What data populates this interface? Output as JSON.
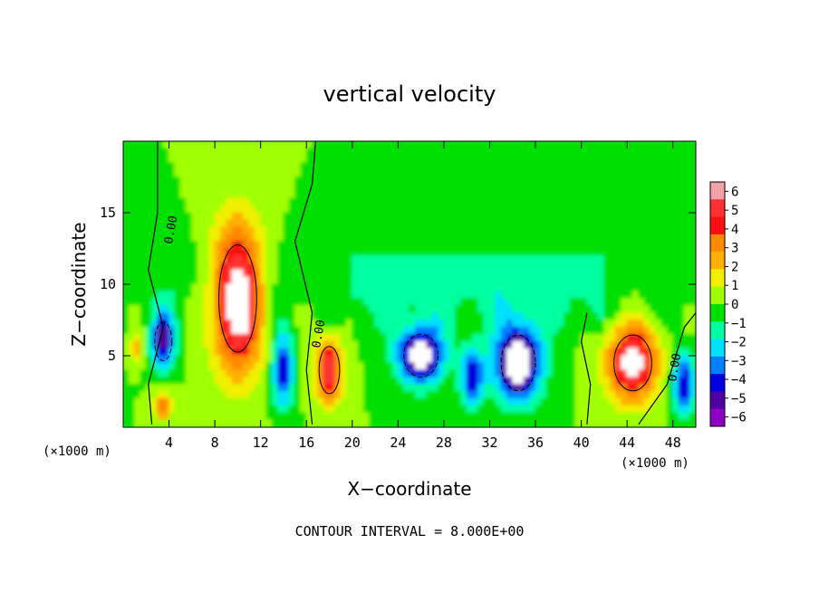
{
  "chart_data": {
    "type": "heatmap",
    "title": "vertical velocity",
    "xlabel": "X−coordinate",
    "ylabel": "Z−coordinate",
    "x_unit_left": "(×1000 m)",
    "x_unit_right": "(×1000 m)",
    "footer": "CONTOUR INTERVAL = 8.000E+00",
    "contour_label": "0.00",
    "xlim": [
      0,
      50
    ],
    "ylim": [
      0,
      20
    ],
    "x_ticks": [
      4,
      8,
      12,
      16,
      20,
      24,
      28,
      32,
      36,
      40,
      44,
      48
    ],
    "y_ticks": [
      5,
      10,
      15
    ],
    "colorbar": {
      "min": -6,
      "max": 6,
      "ticks": [
        "6",
        "5",
        "4",
        "3",
        "2",
        "1",
        "0",
        "−1",
        "−2",
        "−3",
        "−4",
        "−5",
        "−6"
      ],
      "colors": [
        "#f4a0a8",
        "#ff3030",
        "#ff1010",
        "#ff8a00",
        "#ffb000",
        "#f0f000",
        "#a0ff00",
        "#00e000",
        "#00ffa0",
        "#00e0ff",
        "#0080ff",
        "#0000e0",
        "#5000a0",
        "#9000c0"
      ]
    },
    "features": [
      {
        "kind": "updraft",
        "x": 10,
        "z": 9,
        "strength": 8,
        "sx": 2.2,
        "sz": 5
      },
      {
        "kind": "updraft",
        "x": 44.5,
        "z": 4.5,
        "strength": 7,
        "sx": 2.2,
        "sz": 2.6
      },
      {
        "kind": "updraft",
        "x": 18,
        "z": 4,
        "strength": 6,
        "sx": 1.2,
        "sz": 2.2
      },
      {
        "kind": "updraft",
        "x": 3.5,
        "z": 1.5,
        "strength": 4,
        "sx": 0.8,
        "sz": 1
      },
      {
        "kind": "updraft",
        "x": 1.2,
        "z": 5.5,
        "strength": 3,
        "sx": 0.5,
        "sz": 1
      },
      {
        "kind": "downdraft",
        "x": 3.5,
        "z": 6,
        "strength": -6,
        "sx": 1,
        "sz": 1.8
      },
      {
        "kind": "downdraft",
        "x": 14,
        "z": 4,
        "strength": -5,
        "sx": 0.9,
        "sz": 2.5
      },
      {
        "kind": "downdraft",
        "x": 26,
        "z": 5,
        "strength": -7,
        "sx": 2,
        "sz": 2
      },
      {
        "kind": "downdraft",
        "x": 34.5,
        "z": 4.5,
        "strength": -8,
        "sx": 2,
        "sz": 2.6
      },
      {
        "kind": "downdraft",
        "x": 30.5,
        "z": 3.5,
        "strength": -5,
        "sx": 1,
        "sz": 2
      },
      {
        "kind": "downdraft",
        "x": 49,
        "z": 3,
        "strength": -5,
        "sx": 1,
        "sz": 2
      }
    ]
  }
}
